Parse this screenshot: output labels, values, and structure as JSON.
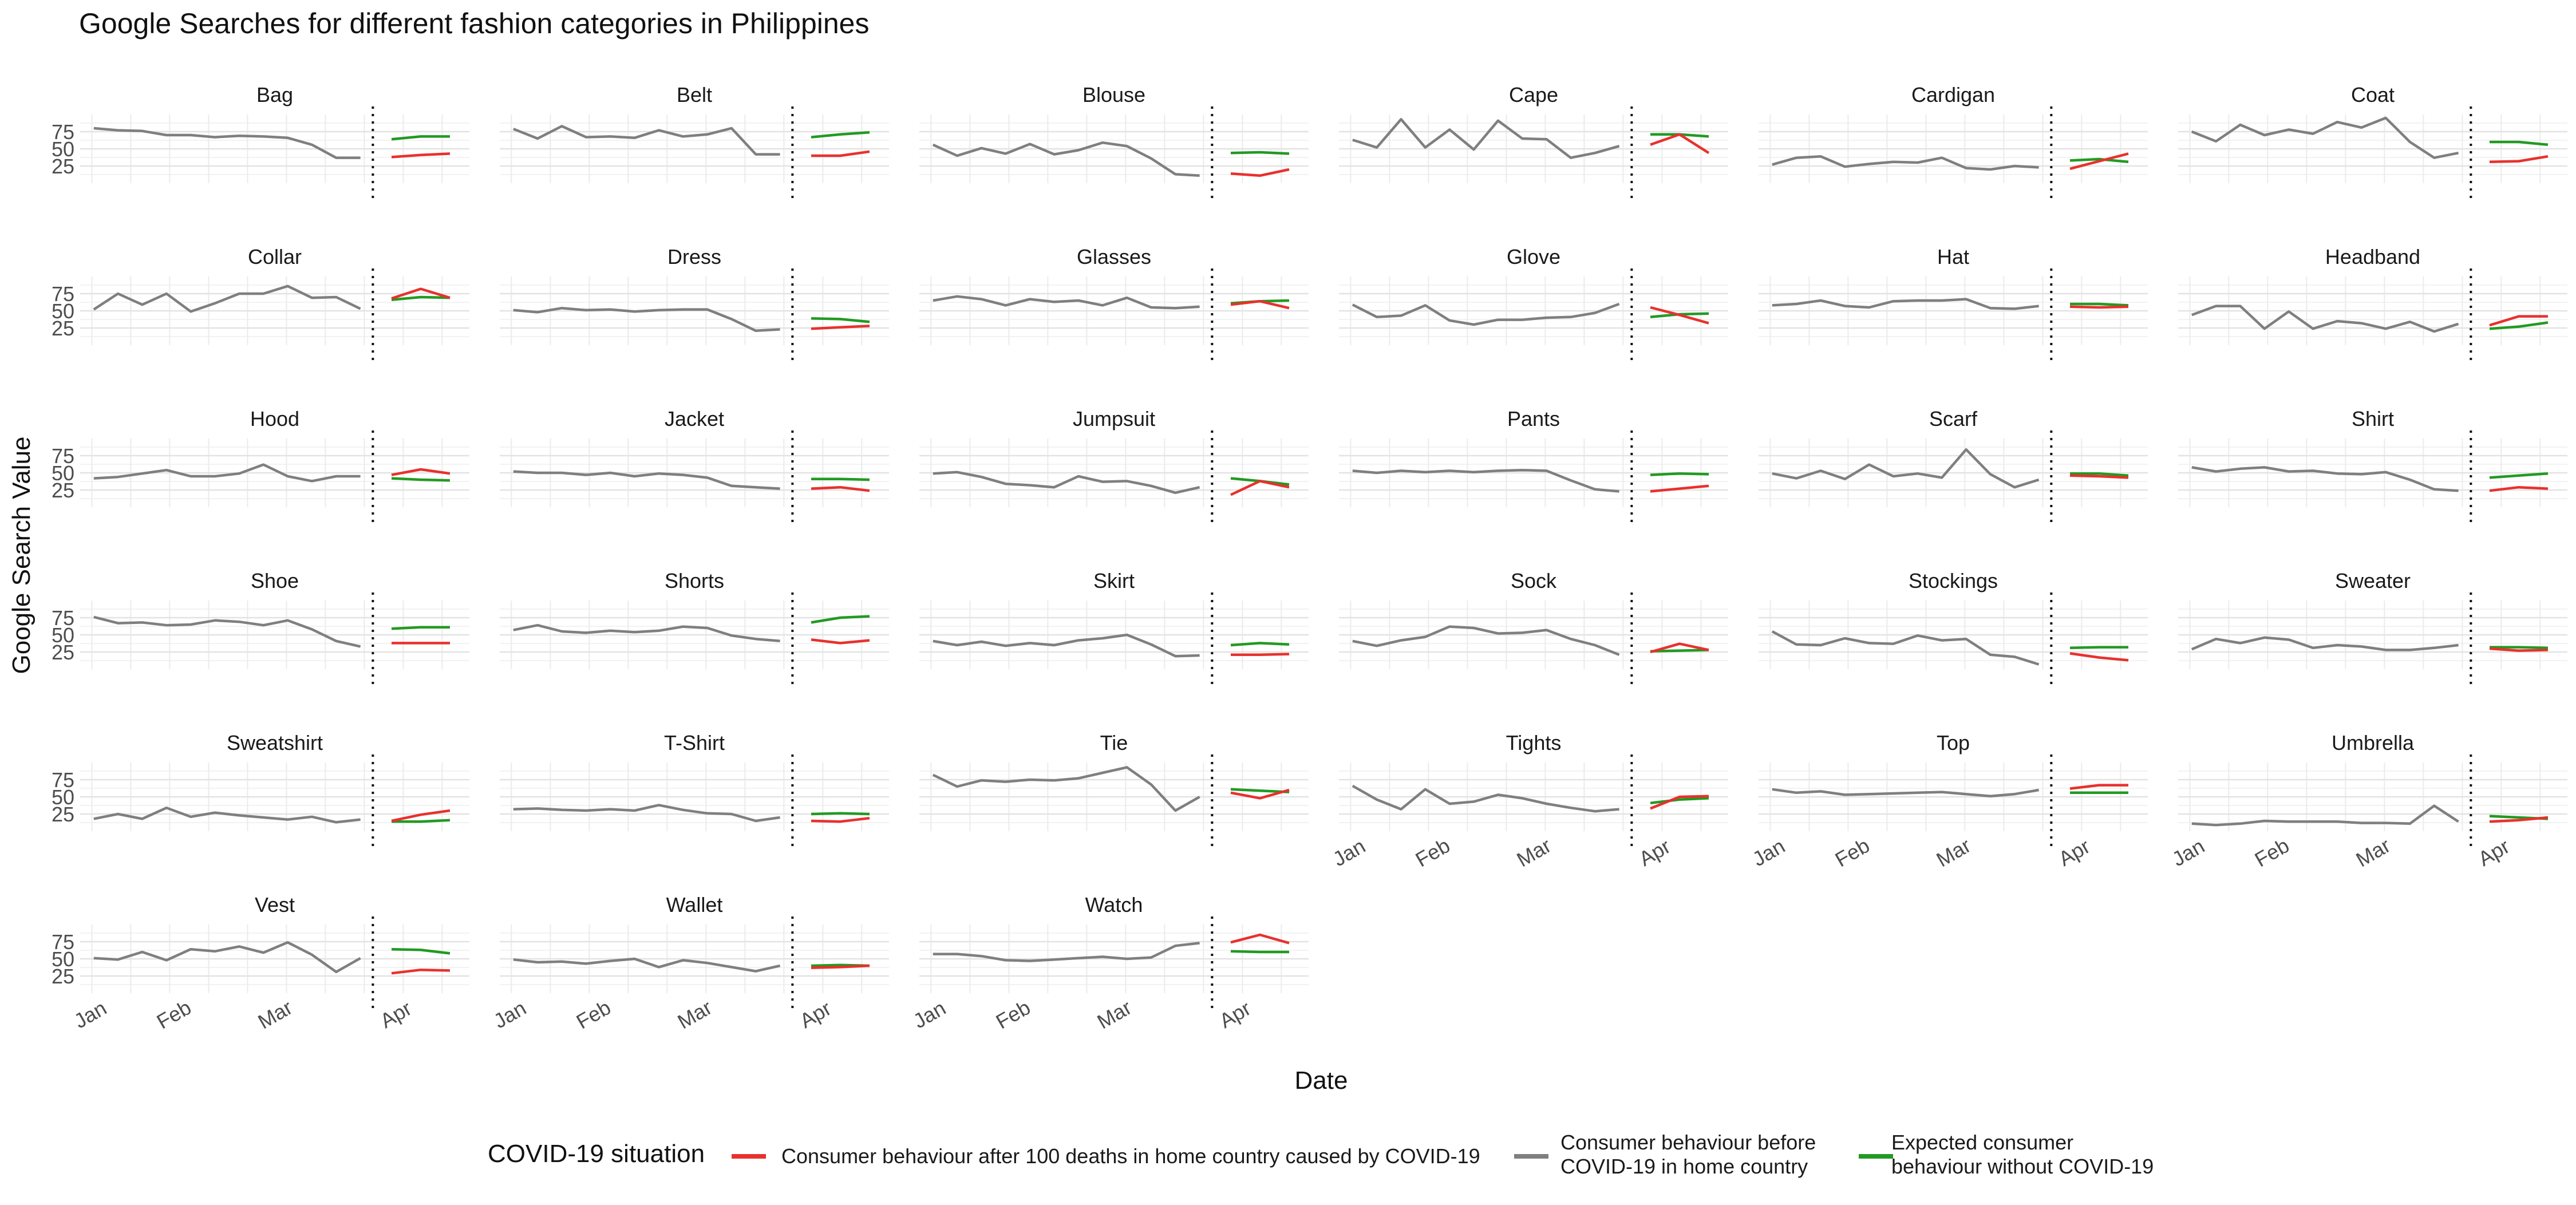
{
  "chart_data": {
    "type": "line",
    "title": "Google Searches for different fashion categories in Philippines",
    "xlabel": "Date",
    "ylabel": "Google Search Value",
    "x_tick_labels": [
      "Jan",
      "Feb",
      "Mar",
      "Apr"
    ],
    "y_ticks": [
      25,
      50,
      75
    ],
    "ylim": [
      0,
      100
    ],
    "grid": true,
    "legend": {
      "title": "COVID-19 situation",
      "position": "bottom",
      "items": [
        {
          "key": "after",
          "label": "Consumer behaviour after 100 deaths in home country caused by COVID-19",
          "color": "#e8312d"
        },
        {
          "key": "before",
          "label": "Consumer behaviour before COVID-19 in home country",
          "color": "#7f7f7f"
        },
        {
          "key": "expected",
          "label": "Expected consumer behaviour without COVID-19",
          "color": "#229a22"
        }
      ]
    },
    "series_colors": {
      "before": "#7f7f7f",
      "after": "#e8312d",
      "expected": "#229a22"
    },
    "panels": [
      {
        "name": "Bag",
        "before": [
          80,
          77,
          76,
          70,
          70,
          67,
          69,
          68,
          66,
          56,
          37,
          37
        ],
        "after": [
          38,
          41,
          43
        ],
        "expected": [
          64,
          68,
          68
        ]
      },
      {
        "name": "Belt",
        "before": [
          79,
          65,
          83,
          67,
          68,
          66,
          77,
          68,
          71,
          80,
          42,
          42
        ],
        "after": [
          40,
          40,
          46
        ],
        "expected": [
          67,
          71,
          74
        ]
      },
      {
        "name": "Blouse",
        "before": [
          56,
          40,
          51,
          43,
          57,
          42,
          48,
          59,
          54,
          36,
          13,
          11
        ],
        "after": [
          14,
          11,
          20
        ],
        "expected": [
          44,
          45,
          43
        ]
      },
      {
        "name": "Cape",
        "before": [
          63,
          52,
          93,
          52,
          78,
          49,
          91,
          65,
          64,
          37,
          44,
          54
        ],
        "after": [
          56,
          71,
          44
        ],
        "expected": [
          71,
          71,
          68
        ]
      },
      {
        "name": "Cardigan",
        "before": [
          27,
          37,
          39,
          24,
          28,
          31,
          30,
          37,
          22,
          20,
          25,
          23
        ],
        "after": [
          21,
          32,
          43
        ],
        "expected": [
          33,
          35,
          31
        ]
      },
      {
        "name": "Coat",
        "before": [
          75,
          61,
          85,
          70,
          78,
          72,
          89,
          81,
          95,
          60,
          37,
          44
        ],
        "after": [
          31,
          32,
          39
        ],
        "expected": [
          60,
          60,
          56
        ]
      },
      {
        "name": "Collar",
        "before": [
          52,
          75,
          59,
          75,
          49,
          61,
          75,
          75,
          86,
          69,
          70,
          53
        ],
        "after": [
          68,
          82,
          69
        ],
        "expected": [
          66,
          70,
          69
        ]
      },
      {
        "name": "Dress",
        "before": [
          51,
          48,
          54,
          51,
          52,
          49,
          51,
          52,
          52,
          38,
          21,
          23
        ],
        "after": [
          24,
          26,
          28
        ],
        "expected": [
          39,
          38,
          34
        ]
      },
      {
        "name": "Glasses",
        "before": [
          65,
          71,
          67,
          58,
          67,
          63,
          65,
          58,
          69,
          55,
          54,
          56
        ],
        "after": [
          59,
          64,
          54
        ],
        "expected": [
          61,
          64,
          65
        ]
      },
      {
        "name": "Glove",
        "before": [
          59,
          41,
          43,
          58,
          36,
          30,
          37,
          37,
          40,
          41,
          47,
          60
        ],
        "after": [
          55,
          44,
          32
        ],
        "expected": [
          41,
          45,
          46
        ]
      },
      {
        "name": "Hat",
        "before": [
          58,
          60,
          65,
          57,
          55,
          64,
          65,
          65,
          67,
          54,
          53,
          57
        ],
        "after": [
          56,
          55,
          56
        ],
        "expected": [
          60,
          60,
          58
        ]
      },
      {
        "name": "Headband",
        "before": [
          44,
          57,
          57,
          24,
          49,
          24,
          35,
          32,
          24,
          34,
          20,
          31
        ],
        "after": [
          29,
          42,
          42
        ],
        "expected": [
          24,
          27,
          33
        ]
      },
      {
        "name": "Hood",
        "before": [
          42,
          44,
          49,
          54,
          45,
          45,
          49,
          62,
          45,
          38,
          45,
          45
        ],
        "after": [
          47,
          55,
          49
        ],
        "expected": [
          42,
          40,
          39
        ]
      },
      {
        "name": "Jacket",
        "before": [
          52,
          50,
          50,
          47,
          50,
          45,
          49,
          47,
          43,
          31,
          29,
          27
        ],
        "after": [
          27,
          29,
          24
        ],
        "expected": [
          41,
          41,
          40
        ]
      },
      {
        "name": "Jumpsuit",
        "before": [
          49,
          51,
          44,
          34,
          32,
          29,
          45,
          37,
          38,
          31,
          21,
          29
        ],
        "after": [
          18,
          38,
          29
        ],
        "expected": [
          42,
          38,
          33
        ]
      },
      {
        "name": "Pants",
        "before": [
          53,
          50,
          53,
          51,
          53,
          51,
          53,
          54,
          53,
          39,
          26,
          23
        ],
        "after": [
          23,
          27,
          31
        ],
        "expected": [
          47,
          49,
          48
        ]
      },
      {
        "name": "Scarf",
        "before": [
          49,
          42,
          53,
          41,
          62,
          45,
          49,
          43,
          84,
          48,
          29,
          40
        ],
        "after": [
          46,
          45,
          43
        ],
        "expected": [
          49,
          49,
          46
        ]
      },
      {
        "name": "Shirt",
        "before": [
          58,
          52,
          56,
          58,
          52,
          53,
          49,
          48,
          51,
          40,
          26,
          24
        ],
        "after": [
          24,
          29,
          27
        ],
        "expected": [
          43,
          46,
          49
        ]
      },
      {
        "name": "Shoe",
        "before": [
          76,
          67,
          68,
          64,
          65,
          71,
          69,
          64,
          71,
          58,
          41,
          33
        ],
        "after": [
          38,
          38,
          38
        ],
        "expected": [
          59,
          61,
          61
        ]
      },
      {
        "name": "Shorts",
        "before": [
          57,
          64,
          55,
          53,
          56,
          54,
          56,
          62,
          60,
          49,
          44,
          41
        ],
        "after": [
          43,
          38,
          42
        ],
        "expected": [
          68,
          75,
          77
        ]
      },
      {
        "name": "Skirt",
        "before": [
          41,
          35,
          40,
          34,
          38,
          35,
          42,
          45,
          50,
          36,
          19,
          20
        ],
        "after": [
          21,
          21,
          22
        ],
        "expected": [
          35,
          38,
          36
        ]
      },
      {
        "name": "Sock",
        "before": [
          41,
          34,
          42,
          47,
          62,
          60,
          52,
          53,
          57,
          44,
          35,
          21
        ],
        "after": [
          25,
          37,
          28
        ],
        "expected": [
          26,
          27,
          28
        ]
      },
      {
        "name": "Stockings",
        "before": [
          55,
          36,
          35,
          45,
          38,
          37,
          49,
          42,
          44,
          21,
          18,
          7
        ],
        "after": [
          23,
          17,
          13
        ],
        "expected": [
          31,
          32,
          32
        ]
      },
      {
        "name": "Sweater",
        "before": [
          29,
          44,
          38,
          46,
          43,
          31,
          35,
          33,
          28,
          28,
          31,
          35
        ],
        "after": [
          30,
          27,
          28
        ],
        "expected": [
          32,
          32,
          31
        ]
      },
      {
        "name": "Sweatshirt",
        "before": [
          18,
          25,
          18,
          34,
          21,
          27,
          23,
          20,
          17,
          21,
          13,
          17
        ],
        "after": [
          15,
          24,
          30
        ],
        "expected": [
          14,
          14,
          16
        ]
      },
      {
        "name": "T-Shirt",
        "before": [
          32,
          33,
          31,
          30,
          32,
          30,
          38,
          31,
          26,
          25,
          15,
          20
        ],
        "after": [
          15,
          14,
          19
        ],
        "expected": [
          25,
          26,
          25
        ]
      },
      {
        "name": "Tie",
        "before": [
          82,
          65,
          74,
          72,
          75,
          74,
          77,
          85,
          93,
          68,
          30,
          50
        ],
        "after": [
          56,
          48,
          60
        ],
        "expected": [
          61,
          59,
          57
        ]
      },
      {
        "name": "Tights",
        "before": [
          66,
          46,
          32,
          61,
          40,
          43,
          53,
          48,
          40,
          34,
          29,
          32
        ],
        "after": [
          33,
          50,
          51
        ],
        "expected": [
          41,
          46,
          48
        ]
      },
      {
        "name": "Top",
        "before": [
          61,
          56,
          58,
          53,
          54,
          55,
          56,
          57,
          54,
          51,
          54,
          60
        ],
        "after": [
          62,
          67,
          67
        ],
        "expected": [
          56,
          56,
          56
        ]
      },
      {
        "name": "Umbrella",
        "before": [
          11,
          9,
          11,
          15,
          14,
          14,
          14,
          12,
          12,
          11,
          37,
          14
        ],
        "after": [
          14,
          16,
          20
        ],
        "expected": [
          22,
          20,
          18
        ]
      },
      {
        "name": "Vest",
        "before": [
          51,
          49,
          60,
          48,
          64,
          61,
          68,
          59,
          74,
          56,
          31,
          51
        ],
        "after": [
          29,
          34,
          33
        ],
        "expected": [
          64,
          63,
          58
        ]
      },
      {
        "name": "Wallet",
        "before": [
          49,
          45,
          46,
          43,
          47,
          50,
          38,
          48,
          44,
          38,
          32,
          40
        ],
        "after": [
          37,
          38,
          40
        ],
        "expected": [
          40,
          41,
          40
        ]
      },
      {
        "name": "Watch",
        "before": [
          57,
          57,
          54,
          48,
          47,
          49,
          51,
          53,
          50,
          52,
          69,
          73
        ],
        "after": [
          74,
          85,
          73
        ],
        "expected": [
          61,
          60,
          60
        ]
      }
    ]
  }
}
